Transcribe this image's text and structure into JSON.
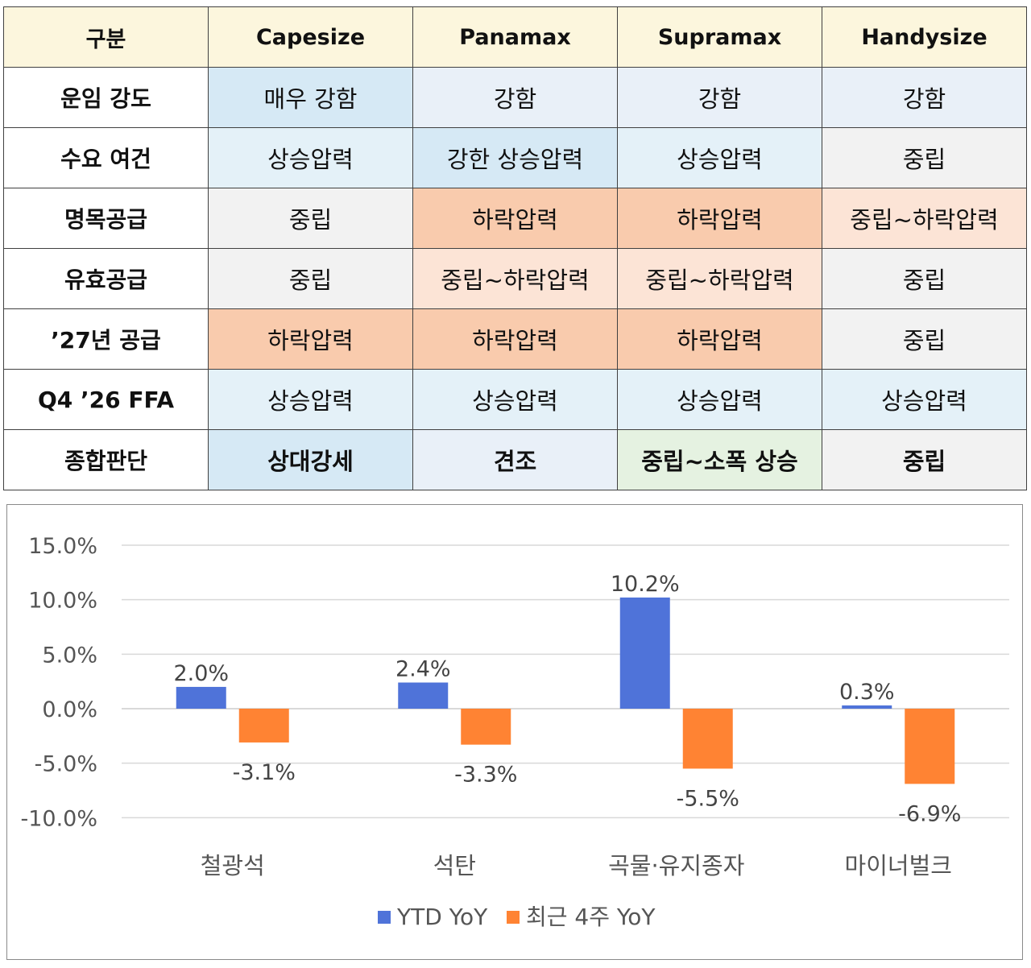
{
  "table": {
    "headers": [
      "구분",
      "Capesize",
      "Panamax",
      "Supramax",
      "Handysize"
    ],
    "rows": [
      {
        "label": "운임 강도",
        "cells": [
          {
            "text": "매우 강함",
            "color": "#d6e9f5"
          },
          {
            "text": "강함",
            "color": "#e9f0f8"
          },
          {
            "text": "강함",
            "color": "#e9f0f8"
          },
          {
            "text": "강함",
            "color": "#e9f0f8"
          }
        ]
      },
      {
        "label": "수요 여건",
        "cells": [
          {
            "text": "상승압력",
            "color": "#e4f1f8"
          },
          {
            "text": "강한 상승압력",
            "color": "#d6e9f5"
          },
          {
            "text": "상승압력",
            "color": "#e4f1f8"
          },
          {
            "text": "중립",
            "color": "#f2f2f2"
          }
        ]
      },
      {
        "label": "명목공급",
        "cells": [
          {
            "text": "중립",
            "color": "#f2f2f2"
          },
          {
            "text": "하락압력",
            "color": "#f9cbad"
          },
          {
            "text": "하락압력",
            "color": "#f9cbad"
          },
          {
            "text": "중립~하락압력",
            "color": "#fce4d6"
          }
        ]
      },
      {
        "label": "유효공급",
        "cells": [
          {
            "text": "중립",
            "color": "#f2f2f2"
          },
          {
            "text": "중립~하락압력",
            "color": "#fce4d6"
          },
          {
            "text": "중립~하락압력",
            "color": "#fce4d6"
          },
          {
            "text": "중립",
            "color": "#f2f2f2"
          }
        ]
      },
      {
        "label": "’27년 공급",
        "cells": [
          {
            "text": "하락압력",
            "color": "#f9cbad"
          },
          {
            "text": "하락압력",
            "color": "#f9cbad"
          },
          {
            "text": "하락압력",
            "color": "#f9cbad"
          },
          {
            "text": "중립",
            "color": "#f2f2f2"
          }
        ]
      },
      {
        "label": "Q4 ’26 FFA",
        "cells": [
          {
            "text": "상승압력",
            "color": "#e4f1f8"
          },
          {
            "text": "상승압력",
            "color": "#e4f1f8"
          },
          {
            "text": "상승압력",
            "color": "#e4f1f8"
          },
          {
            "text": "상승압력",
            "color": "#e4f1f8"
          }
        ]
      },
      {
        "label": "종합판단",
        "cells": [
          {
            "text": "상대강세",
            "color": "#d6e9f5"
          },
          {
            "text": "견조",
            "color": "#e9f0f8"
          },
          {
            "text": "중립~소폭 상승",
            "color": "#e5f2e1"
          },
          {
            "text": "중립",
            "color": "#f2f2f2"
          }
        ]
      }
    ]
  },
  "chart_data": {
    "type": "bar",
    "categories": [
      "철광석",
      "석탄",
      "곡물·유지종자",
      "마이너벌크"
    ],
    "series": [
      {
        "name": "YTD YoY",
        "color": "#4f73d9",
        "values": [
          2.0,
          2.4,
          10.2,
          0.3
        ],
        "labels": [
          "2.0%",
          "2.4%",
          "10.2%",
          "0.3%"
        ]
      },
      {
        "name": "최근 4주 YoY",
        "color": "#ff8333",
        "values": [
          -3.1,
          -3.3,
          -5.5,
          -6.9
        ],
        "labels": [
          "-3.1%",
          "-3.3%",
          "-5.5%",
          "-6.9%"
        ]
      }
    ],
    "yticks": [
      "15.0%",
      "10.0%",
      "5.0%",
      "0.0%",
      "-5.0%",
      "-10.0%"
    ],
    "ytick_values": [
      15,
      10,
      5,
      0,
      -5,
      -10
    ],
    "ylim": [
      -10,
      15
    ],
    "grid": true,
    "gridcolor": "#d9d9d9",
    "legend_position": "bottom"
  }
}
